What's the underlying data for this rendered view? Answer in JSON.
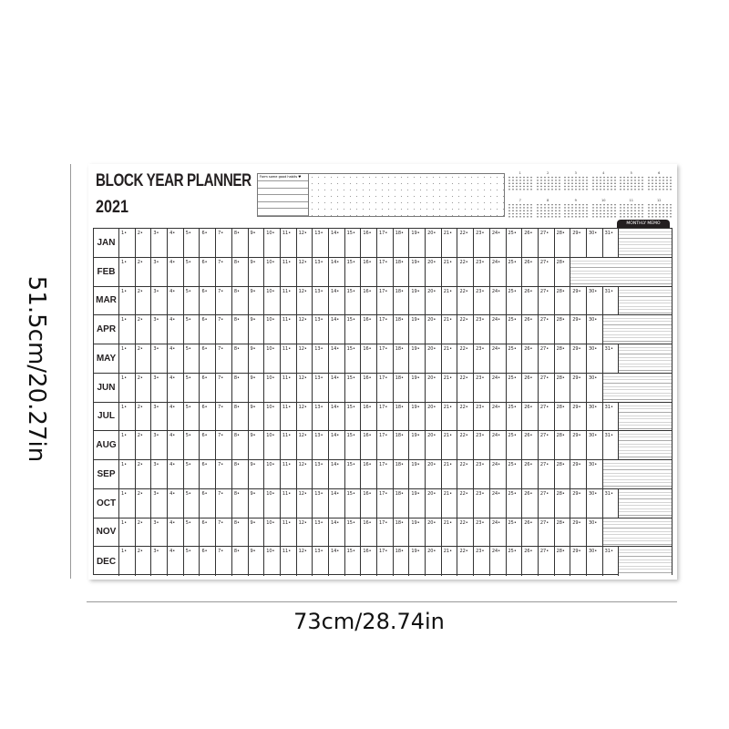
{
  "dimensions": {
    "height_label": "51.5cm/20.27in",
    "width_label": "73cm/28.74in"
  },
  "planner": {
    "title": "BLOCK YEAR PLANNER",
    "year": "2021",
    "habits_label": "Form some good habits ♥",
    "monthly_memo": "MONTHLY MEMO",
    "mini_calendars": [
      "1",
      "2",
      "3",
      "4",
      "5",
      "6",
      "7",
      "8",
      "9",
      "10",
      "11",
      "12"
    ],
    "months": [
      {
        "name": "JAN",
        "days": 31
      },
      {
        "name": "FEB",
        "days": 28
      },
      {
        "name": "MAR",
        "days": 31
      },
      {
        "name": "APR",
        "days": 30
      },
      {
        "name": "MAY",
        "days": 31
      },
      {
        "name": "JUN",
        "days": 30
      },
      {
        "name": "JUL",
        "days": 31
      },
      {
        "name": "AUG",
        "days": 31
      },
      {
        "name": "SEP",
        "days": 30
      },
      {
        "name": "OCT",
        "days": 31
      },
      {
        "name": "NOV",
        "days": 30
      },
      {
        "name": "DEC",
        "days": 31
      }
    ]
  },
  "colors": {
    "ink": "#231f20"
  }
}
